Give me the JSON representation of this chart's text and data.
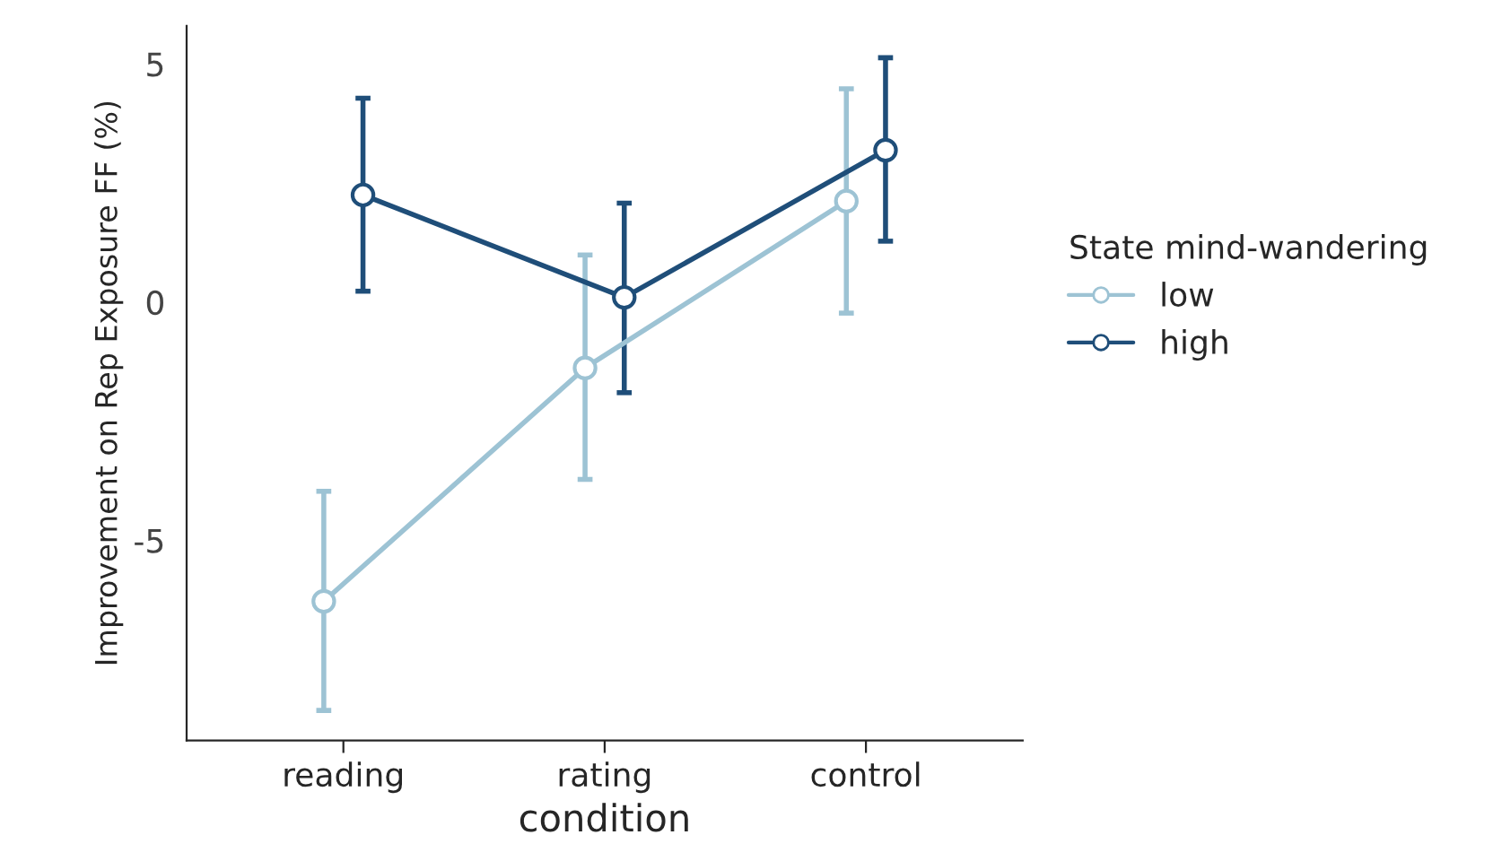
{
  "chart_data": {
    "type": "line",
    "xlabel": "condition",
    "ylabel": "Improvement on Rep Exposure FF (%)",
    "legend_title": "State mind-wandering",
    "categories": [
      "reading",
      "rating",
      "control"
    ],
    "series": [
      {
        "name": "low",
        "color": "#9dc3d4",
        "values": [
          -6.28,
          -1.38,
          2.12
        ],
        "errors": [
          [
            -8.57,
            -3.97
          ],
          [
            -3.72,
            0.99
          ],
          [
            -0.23,
            4.48
          ]
        ]
      },
      {
        "name": "high",
        "color": "#1f4e79",
        "values": [
          2.25,
          0.1,
          3.19
        ],
        "errors": [
          [
            0.23,
            4.28
          ],
          [
            -1.9,
            2.08
          ],
          [
            1.28,
            5.13
          ]
        ]
      }
    ],
    "ylim": [
      -9.2,
      5.8
    ],
    "yticks": [
      -5,
      0,
      5
    ],
    "grid": false,
    "legend": "right",
    "marker": "circle",
    "line_style": "solid"
  }
}
